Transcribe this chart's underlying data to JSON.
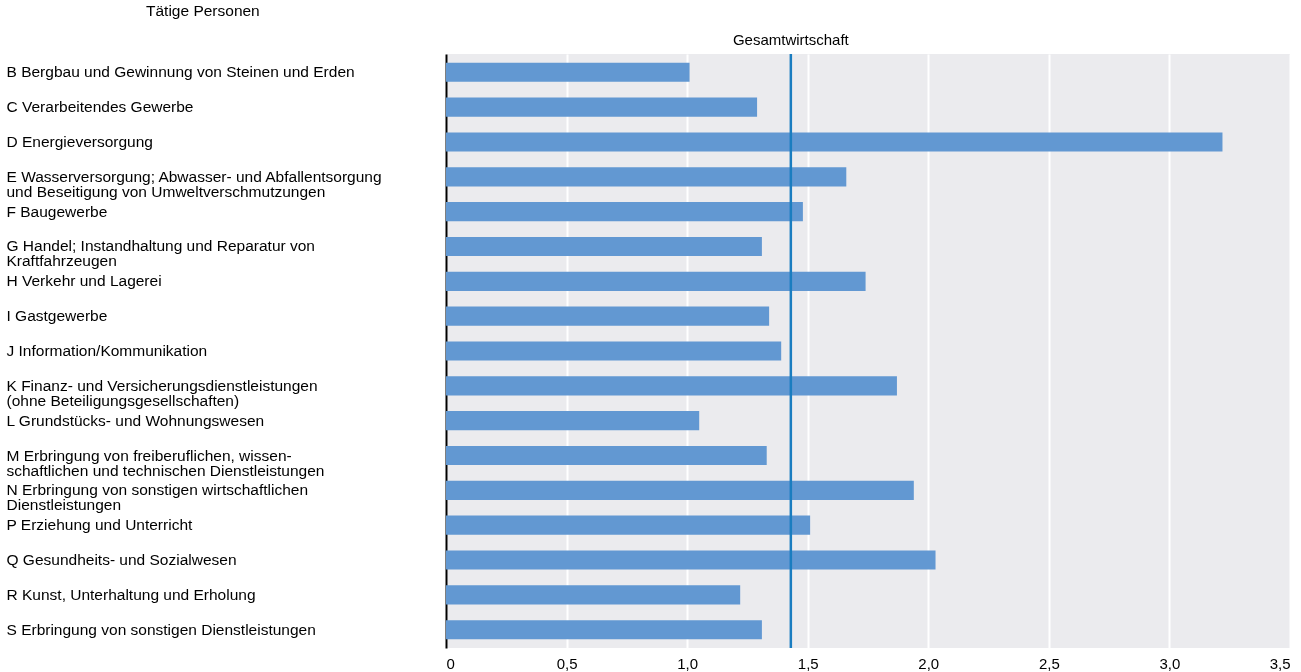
{
  "chart_data": {
    "type": "bar",
    "orientation": "horizontal",
    "title": "Tätige Personen",
    "categories": [
      "B  Bergbau und Gewinnung von Steinen und Erden",
      "C  Verarbeitendes Gewerbe",
      "D  Energieversorgung",
      "E  Wasserversorgung; Abwasser- und Abfallentsorgung\n    und Beseitigung von Umweltverschmutzungen",
      "F  Baugewerbe",
      "G  Handel; Instandhaltung und Reparatur von\n    Kraftfahrzeugen",
      "H  Verkehr und Lagerei",
      "I   Gastgewerbe",
      "J   Information/Kommunikation",
      "K  Finanz- und Versicherungsdienstleistungen\n    (ohne Beteiligungsgesellschaften)",
      "L  Grundstücks- und Wohnungswesen",
      "M  Erbringung von freiberuflichen, wissen-\n    schaftlichen und technischen Dienstleistungen",
      "N  Erbringung von sonstigen wirtschaftlichen\n    Dienstleistungen",
      "P  Erziehung und Unterricht",
      "Q  Gesundheits- und Sozialwesen",
      "R  Kunst, Unterhaltung und Erholung",
      "S  Erbringung von sonstigen Dienstleistungen"
    ],
    "values": [
      1.01,
      1.29,
      3.22,
      1.66,
      1.48,
      1.31,
      1.74,
      1.34,
      1.39,
      1.87,
      1.05,
      1.33,
      1.94,
      1.51,
      2.03,
      1.22,
      1.31
    ],
    "color": "#6298d2",
    "xlim": [
      0,
      3.5
    ],
    "xticks": [
      0,
      {
        "value": 0.5,
        "label": "0,5"
      },
      {
        "value": 1,
        "label": "1,0"
      },
      {
        "value": 1.5,
        "label": "1,5"
      },
      {
        "value": 2,
        "label": "2,0"
      },
      {
        "value": 2.5,
        "label": "2,5"
      },
      {
        "value": 3,
        "label": "3,0"
      },
      {
        "value": 3.5,
        "label": "3,5"
      }
    ],
    "ref_lines": [
      {
        "axis": "x",
        "value": 1.43,
        "label": "Gesamtwirtschaft",
        "color": "#1a7dc0"
      }
    ],
    "grid": "x"
  }
}
